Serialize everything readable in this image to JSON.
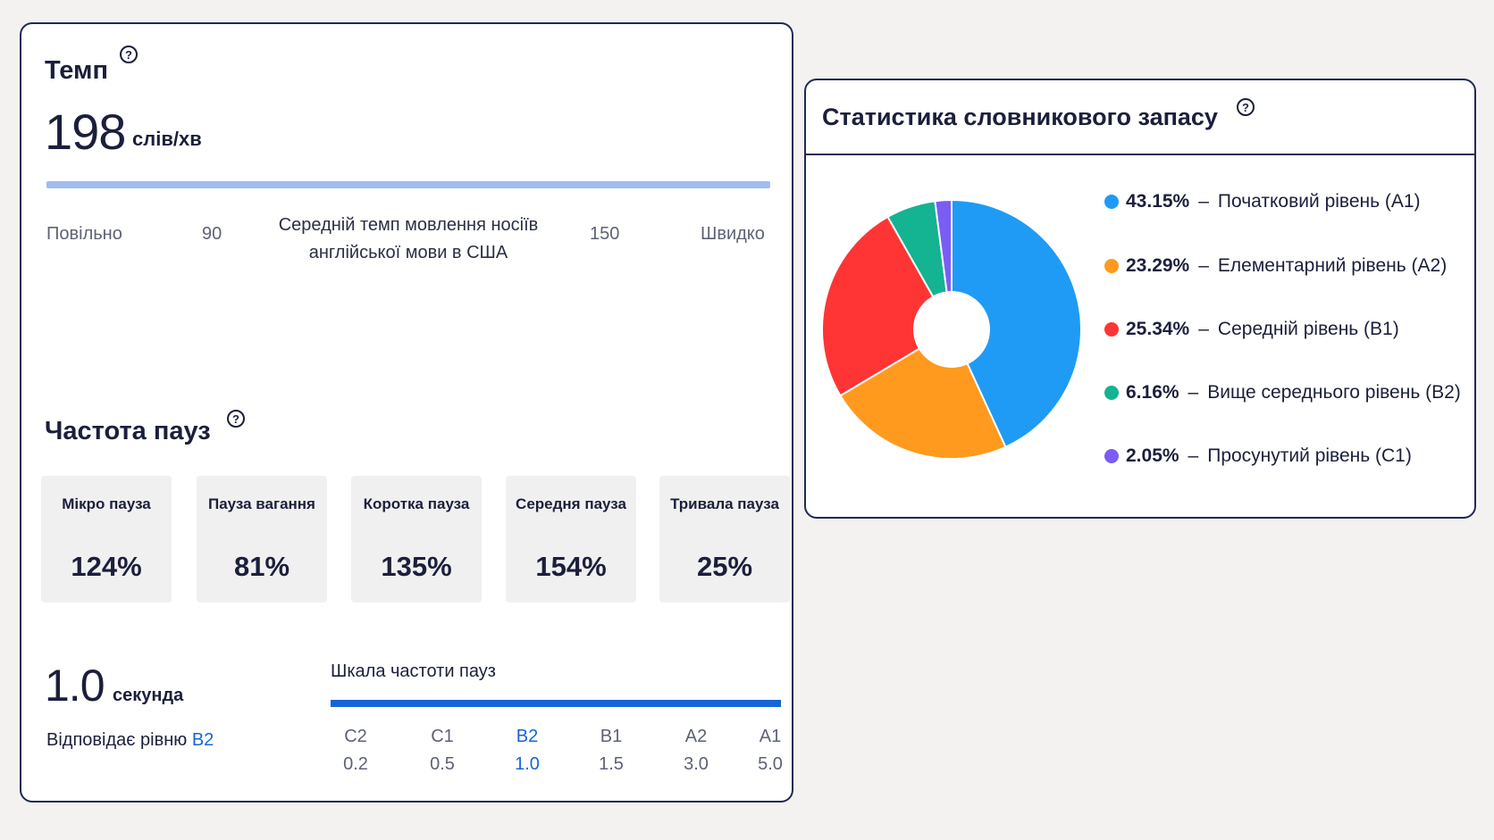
{
  "tempo": {
    "title": "Темп",
    "help": "?",
    "value": "198",
    "unit": "слів/хв",
    "scale": {
      "slow": "Повільно",
      "low": "90",
      "center": "Середній темп мовлення носіїв англійської мови в США",
      "high": "150",
      "fast": "Швидко"
    }
  },
  "pauses": {
    "title": "Частота пауз",
    "help": "?",
    "items": [
      {
        "label": "Мікро пауза",
        "value": "124%"
      },
      {
        "label": "Пауза вагання",
        "value": "81%"
      },
      {
        "label": "Коротка пауза",
        "value": "135%"
      },
      {
        "label": "Середня пауза",
        "value": "154%"
      },
      {
        "label": "Тривала пауза",
        "value": "25%"
      }
    ],
    "duration_value": "1.0",
    "duration_unit": "секунда",
    "level_text": "Відповідає рівню",
    "level_value": "B2",
    "frequency_scale_title": "Шкала частоти пауз",
    "frequency_scale": [
      {
        "level": "C2",
        "value": "0.2"
      },
      {
        "level": "C1",
        "value": "0.5"
      },
      {
        "level": "B2",
        "value": "1.0",
        "active": true
      },
      {
        "level": "B1",
        "value": "1.5"
      },
      {
        "level": "A2",
        "value": "3.0"
      },
      {
        "level": "A1",
        "value": "5.0"
      }
    ],
    "active_color": "#1565d8"
  },
  "vocabulary": {
    "title": "Статистика словникового запасу",
    "help": "?",
    "chart_data": {
      "type": "pie",
      "donut": true,
      "categories": [
        "Початковий рівень (A1)",
        "Елементарний рівень (A2)",
        "Середній рівень (B1)",
        "Вище середнього рівень (B2)",
        "Просунутий рівень (C1)"
      ],
      "values": [
        43.15,
        23.29,
        25.34,
        6.16,
        2.05
      ],
      "labels": [
        "43.15%",
        "23.29%",
        "25.34%",
        "6.16%",
        "2.05%"
      ],
      "colors": [
        "#1f9bf5",
        "#ff9a1f",
        "#ff3535",
        "#14b391",
        "#7b5cf5"
      ],
      "legend": "right"
    }
  }
}
